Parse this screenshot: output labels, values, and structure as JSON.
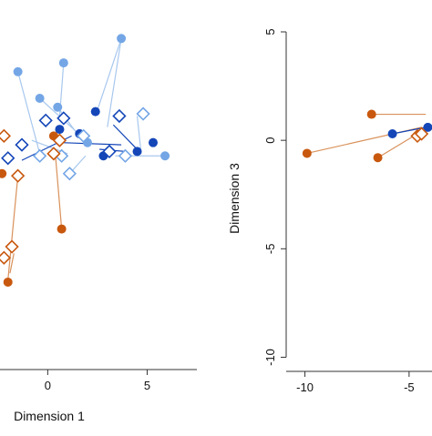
{
  "colors": {
    "orange": "#C8580E",
    "orange_line": "#D9915A",
    "dark_blue": "#1446B8",
    "light_blue": "#74A6E6",
    "light_blue_line": "#A8C8EE",
    "axis": "#333333"
  },
  "chart_data": [
    {
      "type": "scatter",
      "xlabel": "Dimension 1",
      "ylabel": "",
      "x_tick_labels": [
        "0",
        "5"
      ],
      "x_ticks": [
        0,
        5
      ],
      "xlim": [
        -2.4,
        7.5
      ],
      "ylim": [
        -10.0,
        5.0
      ],
      "grid": false,
      "legend": "none",
      "segments": [
        {
          "color": "light_blue_line",
          "x1": 3.7,
          "y1": 4.7,
          "x2": 2.4,
          "y2": 1.2
        },
        {
          "color": "light_blue_line",
          "x1": 3.7,
          "y1": 4.7,
          "x2": 3.0,
          "y2": 0.7
        },
        {
          "color": "light_blue_line",
          "x1": 0.8,
          "y1": 3.6,
          "x2": 0.6,
          "y2": 1.2
        },
        {
          "color": "light_blue_line",
          "x1": -1.5,
          "y1": 3.2,
          "x2": -0.4,
          "y2": -0.5
        },
        {
          "color": "light_blue_line",
          "x1": -0.4,
          "y1": 2.0,
          "x2": 1.8,
          "y2": 0.2
        },
        {
          "color": "light_blue_line",
          "x1": 0.5,
          "y1": 1.6,
          "x2": 1.4,
          "y2": 0.5
        },
        {
          "color": "light_blue_line",
          "x1": 3.4,
          "y1": -0.6,
          "x2": 5.7,
          "y2": -0.6
        },
        {
          "color": "light_blue_line",
          "x1": 4.5,
          "y1": 1.2,
          "x2": 4.7,
          "y2": -0.5
        },
        {
          "color": "light_blue_line",
          "x1": 1.9,
          "y1": -0.6,
          "x2": 1.2,
          "y2": -1.3
        },
        {
          "color": "light_blue_line",
          "x1": -0.8,
          "y1": 0.1,
          "x2": 1.0,
          "y2": -0.5
        },
        {
          "color": "dark_blue",
          "x1": -1.3,
          "y1": -0.8,
          "x2": 1.2,
          "y2": 0.3
        },
        {
          "color": "dark_blue",
          "x1": 0.7,
          "y1": 0.0,
          "x2": 3.7,
          "y2": -0.1
        },
        {
          "color": "dark_blue",
          "x1": 3.3,
          "y1": 0.8,
          "x2": 4.6,
          "y2": -0.4
        },
        {
          "color": "dark_blue",
          "x1": 2.6,
          "y1": -0.3,
          "x2": 3.9,
          "y2": -0.4
        },
        {
          "color": "orange_line",
          "x1": 0.7,
          "y1": -3.9,
          "x2": 0.4,
          "y2": -0.7
        },
        {
          "color": "orange_line",
          "x1": -1.5,
          "y1": -1.5,
          "x2": -2.0,
          "y2": -6.2
        },
        {
          "color": "orange_line",
          "x1": -1.9,
          "y1": -5.9,
          "x2": -1.7,
          "y2": -5.0
        }
      ],
      "points": [
        {
          "x": 3.7,
          "y": 4.7,
          "marker": "circle",
          "color": "light_blue"
        },
        {
          "x": 0.8,
          "y": 3.6,
          "marker": "circle",
          "color": "light_blue"
        },
        {
          "x": -1.5,
          "y": 3.2,
          "marker": "circle",
          "color": "light_blue"
        },
        {
          "x": -0.4,
          "y": 2.0,
          "marker": "circle",
          "color": "light_blue"
        },
        {
          "x": 0.5,
          "y": 1.6,
          "marker": "circle",
          "color": "light_blue"
        },
        {
          "x": 2.0,
          "y": 0.0,
          "marker": "circle",
          "color": "light_blue"
        },
        {
          "x": 5.9,
          "y": -0.6,
          "marker": "circle",
          "color": "light_blue"
        },
        {
          "x": 0.6,
          "y": 0.6,
          "marker": "circle",
          "color": "dark_blue"
        },
        {
          "x": 1.6,
          "y": 0.4,
          "marker": "circle",
          "color": "dark_blue"
        },
        {
          "x": 2.4,
          "y": 1.4,
          "marker": "circle",
          "color": "dark_blue"
        },
        {
          "x": 5.3,
          "y": 0.0,
          "marker": "circle",
          "color": "dark_blue"
        },
        {
          "x": 2.8,
          "y": -0.6,
          "marker": "circle",
          "color": "dark_blue"
        },
        {
          "x": 4.5,
          "y": -0.4,
          "marker": "circle",
          "color": "dark_blue"
        },
        {
          "x": 0.3,
          "y": 0.3,
          "marker": "circle",
          "color": "orange"
        },
        {
          "x": 0.7,
          "y": -3.9,
          "marker": "circle",
          "color": "orange"
        },
        {
          "x": -2.0,
          "y": -6.3,
          "marker": "circle",
          "color": "orange"
        },
        {
          "x": -2.3,
          "y": -1.4,
          "marker": "circle",
          "color": "orange"
        },
        {
          "x": -0.1,
          "y": 1.0,
          "marker": "diamond",
          "color": "dark_blue"
        },
        {
          "x": 0.8,
          "y": 1.1,
          "marker": "diamond",
          "color": "dark_blue"
        },
        {
          "x": 3.6,
          "y": 1.2,
          "marker": "diamond",
          "color": "dark_blue"
        },
        {
          "x": -1.3,
          "y": -0.1,
          "marker": "diamond",
          "color": "dark_blue"
        },
        {
          "x": 3.1,
          "y": -0.4,
          "marker": "diamond",
          "color": "dark_blue"
        },
        {
          "x": -2.0,
          "y": -0.7,
          "marker": "diamond",
          "color": "dark_blue"
        },
        {
          "x": 4.8,
          "y": 1.3,
          "marker": "diamond",
          "color": "light_blue"
        },
        {
          "x": 1.8,
          "y": 0.3,
          "marker": "diamond",
          "color": "light_blue"
        },
        {
          "x": -0.4,
          "y": -0.6,
          "marker": "diamond",
          "color": "light_blue"
        },
        {
          "x": 0.7,
          "y": -0.6,
          "marker": "diamond",
          "color": "light_blue"
        },
        {
          "x": 3.9,
          "y": -0.6,
          "marker": "diamond",
          "color": "light_blue"
        },
        {
          "x": 1.1,
          "y": -1.4,
          "marker": "diamond",
          "color": "light_blue"
        },
        {
          "x": 0.6,
          "y": 0.1,
          "marker": "diamond",
          "color": "orange"
        },
        {
          "x": 0.3,
          "y": -0.5,
          "marker": "diamond",
          "color": "orange"
        },
        {
          "x": -2.2,
          "y": 0.3,
          "marker": "diamond",
          "color": "orange"
        },
        {
          "x": -1.5,
          "y": -1.5,
          "marker": "diamond",
          "color": "orange"
        },
        {
          "x": -1.8,
          "y": -4.7,
          "marker": "diamond",
          "color": "orange"
        },
        {
          "x": -2.2,
          "y": -5.2,
          "marker": "diamond",
          "color": "orange"
        }
      ]
    },
    {
      "type": "scatter",
      "xlabel": "",
      "ylabel": "Dimension 3",
      "x_tick_labels": [
        "-10",
        "-5"
      ],
      "x_ticks": [
        -10,
        -5
      ],
      "y_tick_labels": [
        "5",
        "0",
        "-5",
        "-10"
      ],
      "y_ticks": [
        5,
        0,
        -5,
        -10
      ],
      "xlim": [
        -10.9,
        -3.9
      ],
      "ylim": [
        -10.4,
        5.0
      ],
      "grid": false,
      "legend": "none",
      "segments": [
        {
          "color": "orange_line",
          "x1": -9.9,
          "y1": -0.6,
          "x2": -4.4,
          "y2": 0.6
        },
        {
          "color": "orange_line",
          "x1": -6.5,
          "y1": -0.8,
          "x2": -4.6,
          "y2": 0.3
        },
        {
          "color": "orange_line",
          "x1": -6.8,
          "y1": 1.2,
          "x2": -4.2,
          "y2": 1.2
        },
        {
          "color": "dark_blue",
          "x1": -5.8,
          "y1": 0.3,
          "x2": -4.2,
          "y2": 0.6
        }
      ],
      "points": [
        {
          "x": -6.8,
          "y": 1.2,
          "marker": "circle",
          "color": "orange"
        },
        {
          "x": -9.9,
          "y": -0.6,
          "marker": "circle",
          "color": "orange"
        },
        {
          "x": -6.5,
          "y": -0.8,
          "marker": "circle",
          "color": "orange"
        },
        {
          "x": -5.8,
          "y": 0.3,
          "marker": "circle",
          "color": "dark_blue"
        },
        {
          "x": -4.1,
          "y": 0.6,
          "marker": "circle",
          "color": "dark_blue"
        },
        {
          "x": -4.6,
          "y": 0.2,
          "marker": "diamond",
          "color": "orange"
        },
        {
          "x": -4.4,
          "y": 0.3,
          "marker": "diamond",
          "color": "orange"
        }
      ]
    }
  ]
}
